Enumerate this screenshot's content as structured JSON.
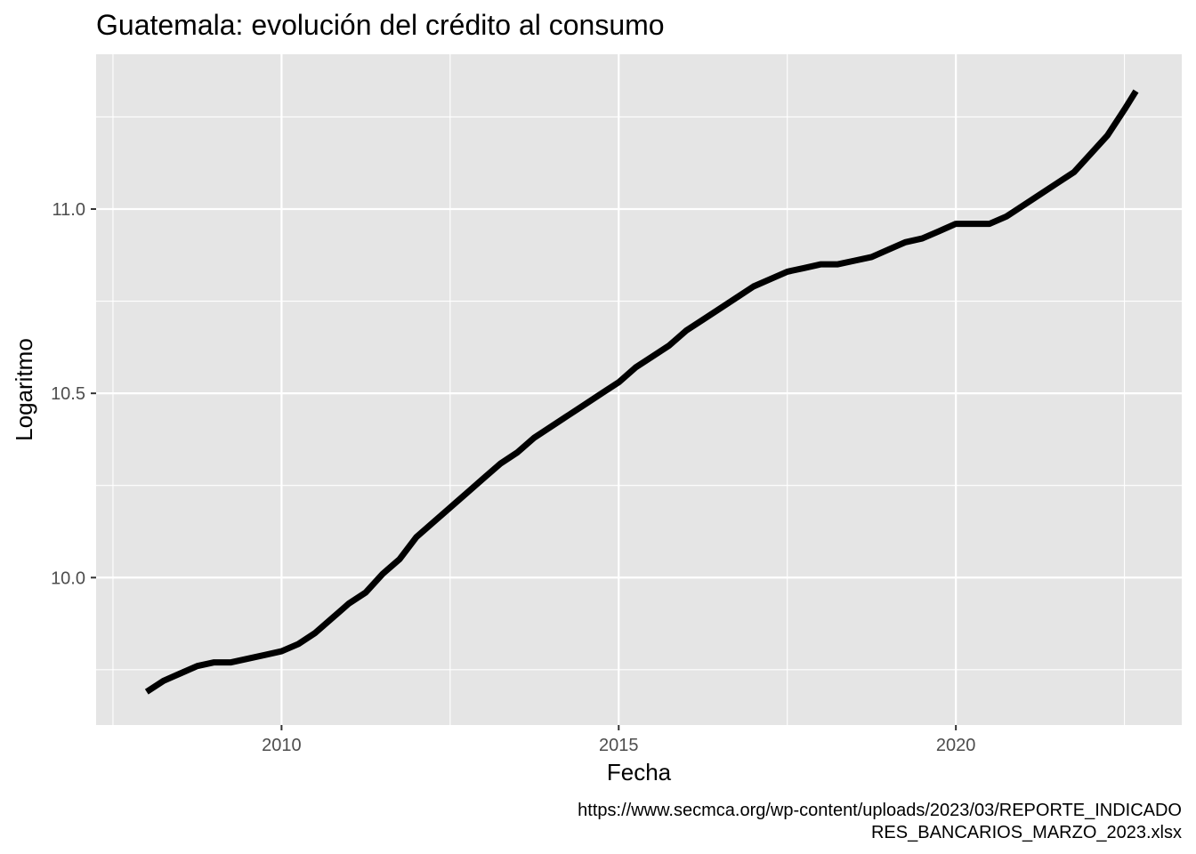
{
  "chart_data": {
    "type": "line",
    "title": "Guatemala: evolución del crédito al consumo",
    "xlabel": "Fecha",
    "ylabel": "Logaritmo",
    "caption_lines": [
      "https://www.secmca.org/wp-content/uploads/2023/03/REPORTE_INDICADO",
      "RES_BANCARIOS_MARZO_2023.xlsx"
    ],
    "x_ticks": [
      {
        "value": 2010,
        "label": "2010"
      },
      {
        "value": 2015,
        "label": "2015"
      },
      {
        "value": 2020,
        "label": "2020"
      }
    ],
    "y_ticks": [
      {
        "value": 10.0,
        "label": "10.0"
      },
      {
        "value": 10.5,
        "label": "10.5"
      },
      {
        "value": 11.0,
        "label": "11.0"
      }
    ],
    "xlim": [
      2007.25,
      2023.35
    ],
    "ylim": [
      9.6,
      11.42
    ],
    "grid": true,
    "series": [
      {
        "color": "#000000",
        "x": [
          2008.0,
          2008.25,
          2008.5,
          2008.75,
          2009.0,
          2009.25,
          2009.5,
          2009.75,
          2010.0,
          2010.25,
          2010.5,
          2010.75,
          2011.0,
          2011.25,
          2011.5,
          2011.75,
          2012.0,
          2012.25,
          2012.5,
          2012.75,
          2013.0,
          2013.25,
          2013.5,
          2013.75,
          2014.0,
          2014.25,
          2014.5,
          2014.75,
          2015.0,
          2015.25,
          2015.5,
          2015.75,
          2016.0,
          2016.25,
          2016.5,
          2016.75,
          2017.0,
          2017.25,
          2017.5,
          2017.75,
          2018.0,
          2018.25,
          2018.5,
          2018.75,
          2019.0,
          2019.25,
          2019.5,
          2019.75,
          2020.0,
          2020.25,
          2020.5,
          2020.75,
          2021.0,
          2021.25,
          2021.5,
          2021.75,
          2022.0,
          2022.25,
          2022.5,
          2022.67
        ],
        "y": [
          9.69,
          9.72,
          9.74,
          9.76,
          9.77,
          9.77,
          9.78,
          9.79,
          9.8,
          9.82,
          9.85,
          9.89,
          9.93,
          9.96,
          10.01,
          10.05,
          10.11,
          10.15,
          10.19,
          10.23,
          10.27,
          10.31,
          10.34,
          10.38,
          10.41,
          10.44,
          10.47,
          10.5,
          10.53,
          10.57,
          10.6,
          10.63,
          10.67,
          10.7,
          10.73,
          10.76,
          10.79,
          10.81,
          10.83,
          10.84,
          10.85,
          10.85,
          10.86,
          10.87,
          10.89,
          10.91,
          10.92,
          10.94,
          10.96,
          10.96,
          10.96,
          10.98,
          11.01,
          11.04,
          11.07,
          11.1,
          11.15,
          11.2,
          11.27,
          11.32
        ]
      }
    ]
  }
}
